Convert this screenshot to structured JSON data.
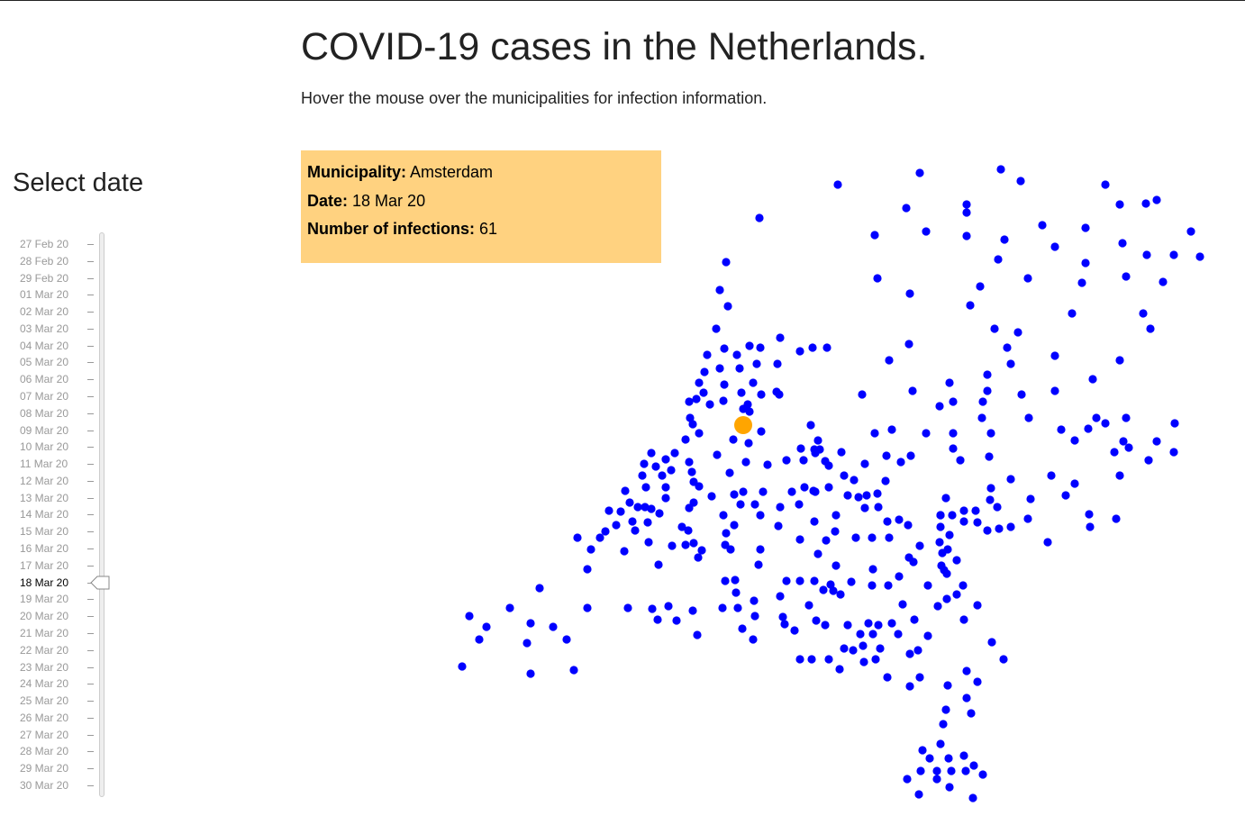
{
  "header": {
    "title": "COVID-19 cases in the Netherlands.",
    "subtitle": "Hover the mouse over the municipalities for infection information."
  },
  "slider": {
    "title": "Select date",
    "dates": [
      "27 Feb 20",
      "28 Feb 20",
      "29 Feb 20",
      "01 Mar 20",
      "02 Mar 20",
      "03 Mar 20",
      "04 Mar 20",
      "05 Mar 20",
      "06 Mar 20",
      "07 Mar 20",
      "08 Mar 20",
      "09 Mar 20",
      "10 Mar 20",
      "11 Mar 20",
      "12 Mar 20",
      "13 Mar 20",
      "14 Mar 20",
      "15 Mar 20",
      "16 Mar 20",
      "17 Mar 20",
      "18 Mar 20",
      "19 Mar 20",
      "20 Mar 20",
      "21 Mar 20",
      "22 Mar 20",
      "23 Mar 20",
      "24 Mar 20",
      "25 Mar 20",
      "26 Mar 20",
      "27 Mar 20",
      "28 Mar 20",
      "29 Mar 20",
      "30 Mar 20"
    ],
    "selected_index": 20
  },
  "tooltip": {
    "municipality_label": "Municipality:",
    "municipality": "Amsterdam",
    "date_label": "Date:",
    "date": "18 Mar 20",
    "infections_label": "Number of infections:",
    "infections": "61"
  },
  "map": {
    "dot_color": "#0000ff",
    "highlight_color": "#ffa500",
    "tooltip_bg": "#ffd280"
  }
}
